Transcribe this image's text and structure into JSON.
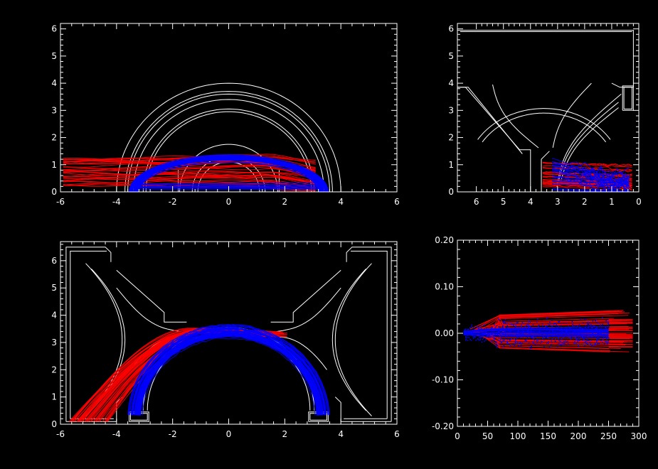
{
  "colors": {
    "background": "#000000",
    "axes": "#ffffff",
    "red": "#ff0000",
    "blue": "#0000ff"
  },
  "chart_data": [
    {
      "id": "top-left",
      "type": "line",
      "title": "",
      "xlabel": "",
      "ylabel": "",
      "xlim": [
        -6,
        6
      ],
      "ylim": [
        0,
        6.2
      ],
      "xticks": [
        "-6",
        "-4",
        "-2",
        "0",
        "2",
        "4",
        "6"
      ],
      "xtick_values": [
        -6,
        -4,
        -2,
        0,
        2,
        4,
        6
      ],
      "yticks": [
        "0",
        "1",
        "2",
        "3",
        "4",
        "5",
        "6"
      ],
      "ytick_values": [
        0,
        1,
        2,
        3,
        4,
        5,
        6
      ],
      "grid": false,
      "structure_arcs_radius": [
        1.1,
        1.3,
        1.75,
        2.95,
        3.05,
        3.4,
        3.6,
        3.7,
        4.0
      ],
      "series": [
        {
          "color": "red",
          "description_values": {
            "x_range": [
              -5.8,
              3.3
            ],
            "y_range": [
              0.15,
              1.2
            ]
          }
        },
        {
          "color": "blue",
          "description_values": {
            "x_range": [
              -3.3,
              3.5
            ],
            "y_range": [
              0.0,
              1.25
            ]
          }
        }
      ]
    },
    {
      "id": "top-right",
      "type": "line",
      "title": "",
      "xlabel": "",
      "ylabel": "",
      "xlim": [
        6.7,
        0
      ],
      "ylim": [
        0,
        6.2
      ],
      "xticks": [
        "6",
        "5",
        "4",
        "3",
        "2",
        "1",
        "0"
      ],
      "xtick_values": [
        6,
        5,
        4,
        3,
        2,
        1,
        0
      ],
      "yticks": [
        "0",
        "1",
        "2",
        "3",
        "4",
        "5",
        "6"
      ],
      "ytick_values": [
        0,
        1,
        2,
        3,
        4,
        5,
        6
      ],
      "grid": false,
      "series": [
        {
          "color": "red",
          "description_values": {
            "x_range": [
              3.5,
              0.2
            ],
            "y_range": [
              0.1,
              1.1
            ]
          }
        },
        {
          "color": "blue",
          "description_values": {
            "x_range": [
              3.2,
              0.2
            ],
            "y_range": [
              0.0,
              1.25
            ]
          }
        }
      ]
    },
    {
      "id": "bottom-left",
      "type": "line",
      "title": "",
      "xlabel": "",
      "ylabel": "",
      "xlim": [
        -6,
        6
      ],
      "ylim": [
        0,
        6.7
      ],
      "xticks": [
        "-6",
        "-4",
        "-2",
        "0",
        "2",
        "4",
        "6"
      ],
      "xtick_values": [
        -6,
        -4,
        -2,
        0,
        2,
        4,
        6
      ],
      "yticks": [
        "0",
        "1",
        "2",
        "3",
        "4",
        "5",
        "6"
      ],
      "ytick_values": [
        0,
        1,
        2,
        3,
        4,
        5,
        6
      ],
      "grid": false,
      "series": [
        {
          "color": "red",
          "description_values": {
            "x_range": [
              -5.7,
              2.0
            ],
            "y_range": [
              0.1,
              3.55
            ]
          }
        },
        {
          "color": "blue",
          "description_values": {
            "x_range": [
              -3.3,
              3.5
            ],
            "y_range": [
              0.2,
              3.6
            ]
          }
        }
      ]
    },
    {
      "id": "bottom-right",
      "type": "scatter",
      "title": "",
      "xlabel": "",
      "ylabel": "",
      "xlim": [
        0,
        300
      ],
      "ylim": [
        -0.2,
        0.2
      ],
      "xticks": [
        "0",
        "50",
        "100",
        "150",
        "200",
        "250",
        "300"
      ],
      "xtick_values": [
        0,
        50,
        100,
        150,
        200,
        250,
        300
      ],
      "yticks": [
        "-0.20",
        "-0.10",
        "0.00",
        "0.10",
        "0.20"
      ],
      "ytick_values": [
        -0.2,
        -0.1,
        0,
        0.1,
        0.2
      ],
      "grid": false,
      "series": [
        {
          "color": "red",
          "description_values": {
            "x_range": [
              15,
              290
            ],
            "y_range": [
              -0.045,
              0.055
            ]
          }
        },
        {
          "color": "blue",
          "description_values": {
            "x_range": [
              10,
              250
            ],
            "y_range": [
              -0.05,
              0.04
            ]
          }
        }
      ]
    }
  ]
}
